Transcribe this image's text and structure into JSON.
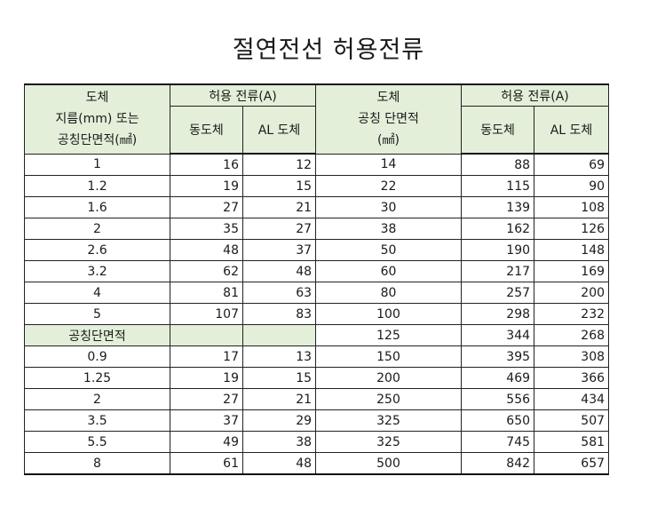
{
  "title": "절연전선 허용전류",
  "header": {
    "left_conductor_line1": "도체",
    "left_conductor_line2": "지름(mm) 또는",
    "left_conductor_line3": "공칭단면적(㎟)",
    "left_allowable": "허용 전류(A)",
    "left_copper": "동도체",
    "left_al": "AL 도체",
    "right_conductor_line1": "도체",
    "right_conductor_line2": "공칭 단면적",
    "right_conductor_line3": "(㎟)",
    "right_allowable": "허용 전류(A)",
    "right_copper": "동도체",
    "right_al": "AL 도체"
  },
  "rows": [
    {
      "size": "1",
      "cu": "16",
      "al": "12",
      "r_size": "14",
      "r_cu": "88",
      "r_al": "69"
    },
    {
      "size": "1.2",
      "cu": "19",
      "al": "15",
      "r_size": "22",
      "r_cu": "115",
      "r_al": "90"
    },
    {
      "size": "1.6",
      "cu": "27",
      "al": "21",
      "r_size": "30",
      "r_cu": "139",
      "r_al": "108"
    },
    {
      "size": "2",
      "cu": "35",
      "al": "27",
      "r_size": "38",
      "r_cu": "162",
      "r_al": "126"
    },
    {
      "size": "2.6",
      "cu": "48",
      "al": "37",
      "r_size": "50",
      "r_cu": "190",
      "r_al": "148"
    },
    {
      "size": "3.2",
      "cu": "62",
      "al": "48",
      "r_size": "60",
      "r_cu": "217",
      "r_al": "169"
    },
    {
      "size": "4",
      "cu": "81",
      "al": "63",
      "r_size": "80",
      "r_cu": "257",
      "r_al": "200"
    },
    {
      "size": "5",
      "cu": "107",
      "al": "83",
      "r_size": "100",
      "r_cu": "298",
      "r_al": "232"
    },
    {
      "size": "공칭단면적",
      "cu": "",
      "al": "",
      "r_size": "125",
      "r_cu": "344",
      "r_al": "268"
    },
    {
      "size": "0.9",
      "cu": "17",
      "al": "13",
      "r_size": "150",
      "r_cu": "395",
      "r_al": "308"
    },
    {
      "size": "1.25",
      "cu": "19",
      "al": "15",
      "r_size": "200",
      "r_cu": "469",
      "r_al": "366"
    },
    {
      "size": "2",
      "cu": "27",
      "al": "21",
      "r_size": "250",
      "r_cu": "556",
      "r_al": "434"
    },
    {
      "size": "3.5",
      "cu": "37",
      "al": "29",
      "r_size": "325",
      "r_cu": "650",
      "r_al": "507"
    },
    {
      "size": "5.5",
      "cu": "49",
      "al": "38",
      "r_size": "325",
      "r_cu": "745",
      "r_al": "581"
    },
    {
      "size": "8",
      "cu": "61",
      "al": "48",
      "r_size": "500",
      "r_cu": "842",
      "r_al": "657"
    }
  ],
  "section_row_index": 8,
  "colors": {
    "header_bg": "#e3efd9",
    "border": "#222222"
  }
}
